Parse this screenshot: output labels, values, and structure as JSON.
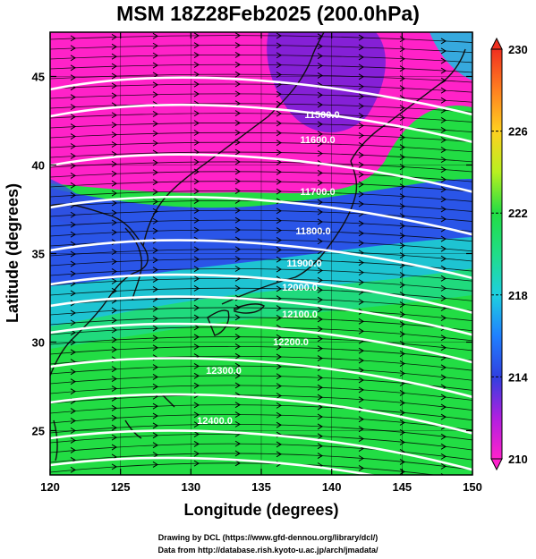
{
  "title": "MSM 18Z28Feb2025 (200.0hPa)",
  "x_axis": {
    "label": "Longitude (degrees)",
    "range": [
      120,
      150
    ],
    "ticks": [
      "120",
      "125",
      "130",
      "135",
      "140",
      "145",
      "150"
    ]
  },
  "y_axis": {
    "label": "Latitude  (degrees)",
    "range": [
      22.5,
      47.5
    ],
    "ticks": [
      "25",
      "30",
      "35",
      "40",
      "45"
    ]
  },
  "colorbar": {
    "range": [
      210,
      230
    ],
    "ticks": [
      "210",
      "214",
      "218",
      "222",
      "226",
      "230"
    ],
    "colors": [
      "#ff1ec8",
      "#a020e0",
      "#3040e0",
      "#1ec8e0",
      "#22dd44",
      "#b8f020",
      "#ffd020",
      "#ff8020",
      "#f03020"
    ]
  },
  "contours": {
    "color": "#ffffff",
    "labels": [
      "11500.0",
      "11600.0",
      "11700.0",
      "11800.0",
      "11900.0",
      "12000.0",
      "12100.0",
      "12200.0",
      "12300.0",
      "12400.0"
    ]
  },
  "credits": {
    "line1": "Drawing by DCL (https://www.gfd-dennou.org/library/dcl/)",
    "line2": "Data from http://database.rish.kyoto-u.ac.jp/arch/jmadata/"
  }
}
